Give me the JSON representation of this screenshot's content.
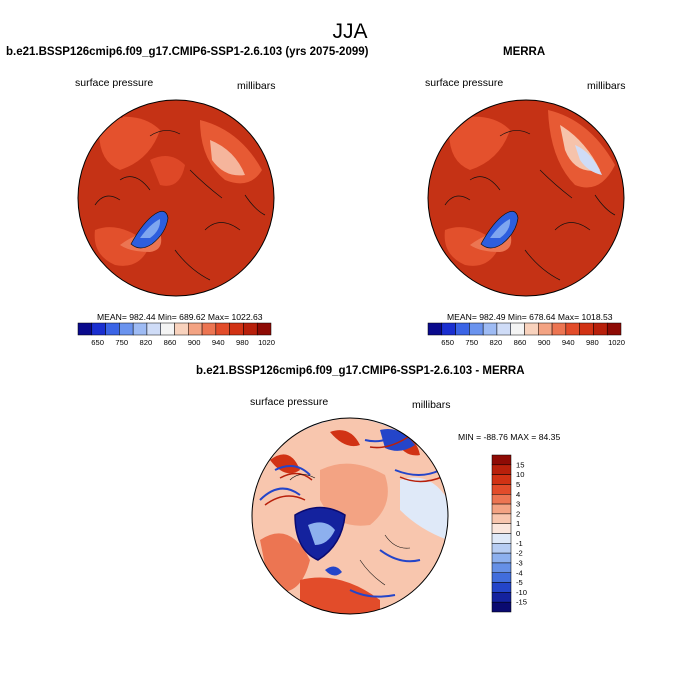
{
  "figure_title": "JJA",
  "chart_data": [
    {
      "type": "heatmap",
      "projection": "north-polar-stereographic",
      "title": "b.e21.BSSP126cmip6.f09_g17.CMIP6-SSP1-2.6.103 (yrs 2075-2099)",
      "variable": "surface pressure",
      "units": "millibars",
      "stats": "MEAN= 982.44   Min= 689.62   Max= 1022.63",
      "colorbar": {
        "orientation": "horizontal",
        "tick_labels": [
          "650",
          "750",
          "820",
          "860",
          "900",
          "940",
          "980",
          "1020"
        ],
        "colors": [
          "#0a0a8c",
          "#1a2fd0",
          "#3b64e6",
          "#6a93ee",
          "#9ebbf4",
          "#cfdcf7",
          "#f4f4f4",
          "#f8d2bd",
          "#f3a383",
          "#ec7552",
          "#e24c2a",
          "#d13214",
          "#b8200b",
          "#8e0b05"
        ]
      }
    },
    {
      "type": "heatmap",
      "projection": "north-polar-stereographic",
      "title": "MERRA",
      "variable": "surface pressure",
      "units": "millibars",
      "stats": "MEAN= 982.49   Min= 678.64   Max= 1018.53",
      "colorbar": {
        "orientation": "horizontal",
        "tick_labels": [
          "650",
          "750",
          "820",
          "860",
          "900",
          "940",
          "980",
          "1020"
        ],
        "colors": [
          "#0a0a8c",
          "#1a2fd0",
          "#3b64e6",
          "#6a93ee",
          "#9ebbf4",
          "#cfdcf7",
          "#f4f4f4",
          "#f8d2bd",
          "#f3a383",
          "#ec7552",
          "#e24c2a",
          "#d13214",
          "#b8200b",
          "#8e0b05"
        ]
      }
    },
    {
      "type": "heatmap",
      "projection": "north-polar-stereographic",
      "title": "b.e21.BSSP126cmip6.f09_g17.CMIP6-SSP1-2.6.103 - MERRA",
      "variable": "surface pressure",
      "units": "millibars",
      "stats": "MIN = -88.76 MAX =  84.35",
      "colorbar": {
        "orientation": "vertical",
        "tick_labels": [
          "15",
          "10",
          "5",
          "4",
          "3",
          "2",
          "1",
          "0",
          "-1",
          "-2",
          "-3",
          "-4",
          "-5",
          "-10",
          "-15"
        ],
        "colors": [
          "#8e0b05",
          "#b8200b",
          "#d13214",
          "#e24c2a",
          "#ec7552",
          "#f3a383",
          "#f8c6ae",
          "#fbe6dc",
          "#dfe9f8",
          "#b7cdf3",
          "#8db0ee",
          "#6690e6",
          "#416ddc",
          "#2445c9",
          "#14229e",
          "#0a0a70"
        ]
      }
    }
  ]
}
